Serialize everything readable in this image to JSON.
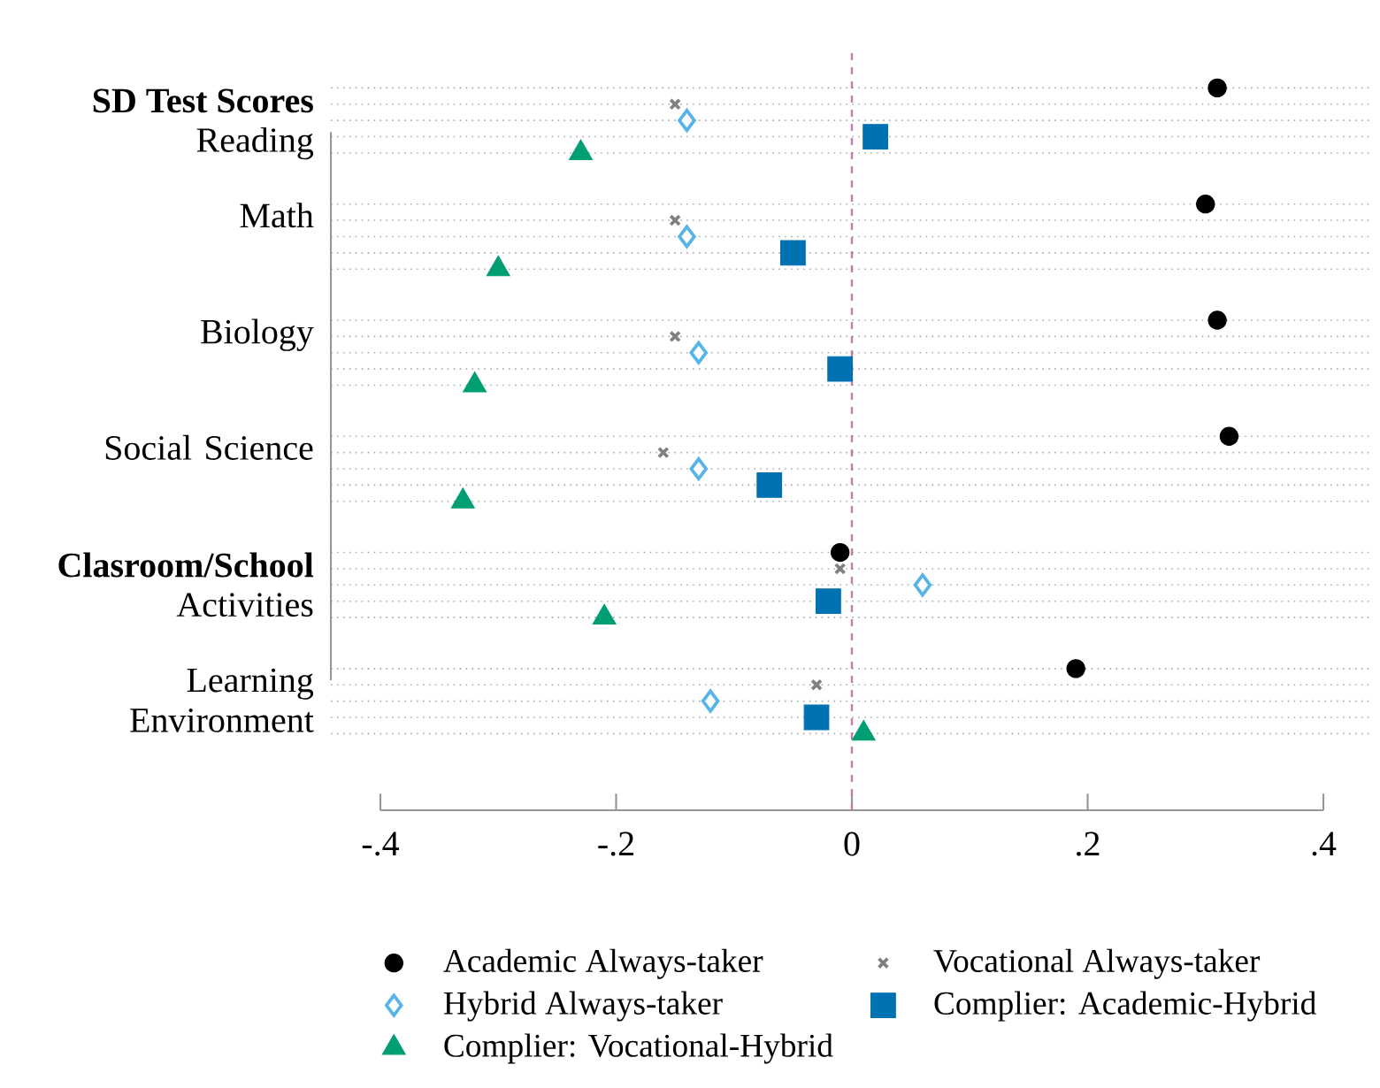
{
  "chart_data": {
    "type": "scatter",
    "orientation": "horizontal",
    "categories": [
      "Reading",
      "Math",
      "Biology",
      "Social Science",
      "Activities",
      "Learning Environment"
    ],
    "annotations": [
      "**SD Test Scores**",
      "**Clasroom/School**"
    ],
    "series": [
      {
        "name": "Academic Always-taker",
        "color": "#000000",
        "marker": "circle",
        "values": [
          0.31,
          0.3,
          0.31,
          0.32,
          -0.01,
          0.19
        ]
      },
      {
        "name": "Vocational Always-taker",
        "color": "#808080",
        "marker": "cross",
        "values": [
          -0.15,
          -0.15,
          -0.15,
          -0.16,
          -0.01,
          -0.03
        ]
      },
      {
        "name": "Hybrid Always-taker",
        "color": "#56b4e9",
        "marker": "diamond",
        "values": [
          -0.14,
          -0.14,
          -0.13,
          -0.13,
          0.06,
          -0.12
        ]
      },
      {
        "name": "Complier: Academic-Hybrid",
        "color": "#0072b2",
        "marker": "square",
        "values": [
          0.02,
          -0.05,
          -0.01,
          -0.07,
          -0.02,
          -0.03
        ]
      },
      {
        "name": "Complier: Vocational-Hybrid",
        "color": "#009e73",
        "marker": "triangle",
        "values": [
          -0.23,
          -0.3,
          -0.32,
          -0.33,
          -0.21,
          0.01
        ]
      }
    ],
    "xlim": [
      -0.4,
      0.4
    ],
    "xticks": [
      {
        "value": -0.4,
        "label": "-.4"
      },
      {
        "value": -0.2,
        "label": "-.2"
      },
      0,
      {
        "value": 0.2,
        "label": ".2"
      },
      {
        "value": 0.4,
        "label": ".4"
      }
    ],
    "ref_lines": [
      {
        "axis": "x",
        "value": 0,
        "color": "#cc79a7",
        "line_style": "dashed"
      }
    ],
    "grid": "y",
    "legend": "bottom"
  }
}
